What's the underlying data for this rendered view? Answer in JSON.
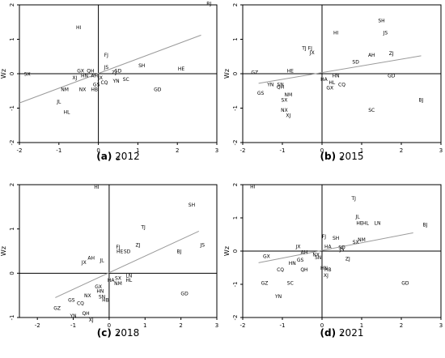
{
  "chart_data": [
    {
      "type": "scatter",
      "caption_label": "(a)",
      "caption_year": "2012",
      "xlabel": "z",
      "ylabel": "Wz",
      "xlim": [
        -2,
        3
      ],
      "ylim": [
        -2,
        2
      ],
      "xticks": [
        "-2",
        "-1",
        "0",
        "1",
        "2",
        "3"
      ],
      "yticks": [
        "-2",
        "-1",
        "0",
        "1",
        "2"
      ],
      "trend": {
        "x1": -2.0,
        "y1": -0.85,
        "x2": 2.6,
        "y2": 1.12
      },
      "points": [
        {
          "label": "TJ",
          "x": 2.3,
          "y": 2.35
        },
        {
          "label": "BJ",
          "x": 2.8,
          "y": 2.05
        },
        {
          "label": "HI",
          "x": -0.5,
          "y": 1.35
        },
        {
          "label": "FJ",
          "x": 0.2,
          "y": 0.55
        },
        {
          "label": "JS",
          "x": 0.2,
          "y": 0.2
        },
        {
          "label": "SD",
          "x": 0.5,
          "y": 0.1
        },
        {
          "label": "SH",
          "x": 1.1,
          "y": 0.25
        },
        {
          "label": "HE",
          "x": 2.1,
          "y": 0.15
        },
        {
          "label": "SX",
          "x": -1.8,
          "y": 0.0
        },
        {
          "label": "GX",
          "x": -0.45,
          "y": 0.1
        },
        {
          "label": "QH",
          "x": -0.2,
          "y": 0.1
        },
        {
          "label": "ZJ",
          "x": 0.4,
          "y": 0.05
        },
        {
          "label": "HN",
          "x": -0.35,
          "y": -0.05
        },
        {
          "label": "AH",
          "x": -0.1,
          "y": -0.05
        },
        {
          "label": "XJ",
          "x": -0.6,
          "y": -0.1
        },
        {
          "label": "JX",
          "x": 0.05,
          "y": -0.1
        },
        {
          "label": "SC",
          "x": 0.7,
          "y": -0.15
        },
        {
          "label": "YN",
          "x": 0.45,
          "y": -0.2
        },
        {
          "label": "CQ",
          "x": 0.15,
          "y": -0.25
        },
        {
          "label": "GS",
          "x": -0.05,
          "y": -0.3
        },
        {
          "label": "NM",
          "x": -0.85,
          "y": -0.45
        },
        {
          "label": "NX",
          "x": -0.4,
          "y": -0.45
        },
        {
          "label": "HB",
          "x": -0.1,
          "y": -0.45
        },
        {
          "label": "GD",
          "x": 1.5,
          "y": -0.45
        },
        {
          "label": "JL",
          "x": -1.0,
          "y": -0.8
        },
        {
          "label": "HL",
          "x": -0.8,
          "y": -1.1
        }
      ]
    },
    {
      "type": "scatter",
      "caption_label": "(b)",
      "caption_year": "2015",
      "xlabel": "z",
      "ylabel": "Wz",
      "xlim": [
        -2,
        3
      ],
      "ylim": [
        -2,
        2
      ],
      "xticks": [
        "-2",
        "-1",
        "0",
        "1",
        "2",
        "3"
      ],
      "yticks": [
        "-2",
        "-1",
        "0",
        "1",
        "2"
      ],
      "trend": {
        "x1": -1.6,
        "y1": -0.28,
        "x2": 2.5,
        "y2": 0.52
      },
      "points": [
        {
          "label": "SH",
          "x": 1.5,
          "y": 1.55
        },
        {
          "label": "JS",
          "x": 1.6,
          "y": 1.2
        },
        {
          "label": "HI",
          "x": 0.35,
          "y": 1.2
        },
        {
          "label": "TJ",
          "x": -0.45,
          "y": 0.75
        },
        {
          "label": "FJ",
          "x": -0.3,
          "y": 0.75
        },
        {
          "label": "JX",
          "x": -0.25,
          "y": 0.62
        },
        {
          "label": "AH",
          "x": 1.25,
          "y": 0.55
        },
        {
          "label": "ZJ",
          "x": 1.75,
          "y": 0.6
        },
        {
          "label": "SD",
          "x": 0.85,
          "y": 0.35
        },
        {
          "label": "GZ",
          "x": -1.7,
          "y": 0.05
        },
        {
          "label": "HE",
          "x": -0.8,
          "y": 0.1
        },
        {
          "label": "HN",
          "x": 0.35,
          "y": -0.05
        },
        {
          "label": "GD",
          "x": 1.75,
          "y": -0.05
        },
        {
          "label": "HA",
          "x": 0.05,
          "y": -0.15
        },
        {
          "label": "HL",
          "x": 0.25,
          "y": -0.25
        },
        {
          "label": "CQ",
          "x": 0.5,
          "y": -0.3
        },
        {
          "label": "YN",
          "x": -1.3,
          "y": -0.3
        },
        {
          "label": "SN",
          "x": -1.05,
          "y": -0.3
        },
        {
          "label": "QH",
          "x": -1.05,
          "y": -0.38
        },
        {
          "label": "GX",
          "x": 0.2,
          "y": -0.4
        },
        {
          "label": "GS",
          "x": -1.55,
          "y": -0.55
        },
        {
          "label": "NM",
          "x": -0.85,
          "y": -0.6
        },
        {
          "label": "SX",
          "x": -0.95,
          "y": -0.75
        },
        {
          "label": "BJ",
          "x": 2.5,
          "y": -0.75
        },
        {
          "label": "NX",
          "x": -0.95,
          "y": -1.05
        },
        {
          "label": "SC",
          "x": 1.25,
          "y": -1.05
        },
        {
          "label": "XJ",
          "x": -0.85,
          "y": -1.2
        }
      ]
    },
    {
      "type": "scatter",
      "caption_label": "(c)",
      "caption_year": "2018",
      "xlabel": "z",
      "ylabel": "Wz",
      "xlim": [
        -2.5,
        3
      ],
      "ylim": [
        -1,
        2
      ],
      "xticks": [
        "-2",
        "-1",
        "0",
        "1",
        "2",
        "3"
      ],
      "yticks": [
        "-1",
        "0",
        "1",
        "2"
      ],
      "trend": {
        "x1": -1.5,
        "y1": -0.55,
        "x2": 2.5,
        "y2": 0.95
      },
      "points": [
        {
          "label": "HI",
          "x": -0.35,
          "y": 1.95
        },
        {
          "label": "SH",
          "x": 2.3,
          "y": 1.55
        },
        {
          "label": "TJ",
          "x": 0.95,
          "y": 1.05
        },
        {
          "label": "ZJ",
          "x": 0.8,
          "y": 0.65
        },
        {
          "label": "JS",
          "x": 2.6,
          "y": 0.65
        },
        {
          "label": "FJ",
          "x": 0.25,
          "y": 0.6
        },
        {
          "label": "HE",
          "x": 0.3,
          "y": 0.5
        },
        {
          "label": "SD",
          "x": 0.5,
          "y": 0.5
        },
        {
          "label": "BJ",
          "x": 1.95,
          "y": 0.5
        },
        {
          "label": "AH",
          "x": -0.5,
          "y": 0.35
        },
        {
          "label": "JX",
          "x": -0.7,
          "y": 0.25
        },
        {
          "label": "JL",
          "x": -0.2,
          "y": 0.3
        },
        {
          "label": "LN",
          "x": 0.55,
          "y": -0.05
        },
        {
          "label": "SX",
          "x": 0.25,
          "y": -0.1
        },
        {
          "label": "HA",
          "x": 0.05,
          "y": -0.15
        },
        {
          "label": "HL",
          "x": 0.55,
          "y": -0.15
        },
        {
          "label": "NM",
          "x": 0.25,
          "y": -0.22
        },
        {
          "label": "GX",
          "x": -0.3,
          "y": -0.3
        },
        {
          "label": "HN",
          "x": -0.25,
          "y": -0.4
        },
        {
          "label": "GD",
          "x": 2.1,
          "y": -0.45
        },
        {
          "label": "NX",
          "x": -0.6,
          "y": -0.5
        },
        {
          "label": "SN",
          "x": -0.2,
          "y": -0.52
        },
        {
          "label": "GS",
          "x": -1.05,
          "y": -0.6
        },
        {
          "label": "HB",
          "x": -0.1,
          "y": -0.6
        },
        {
          "label": "CQ",
          "x": -0.8,
          "y": -0.67
        },
        {
          "label": "GZ",
          "x": -1.45,
          "y": -0.78
        },
        {
          "label": "QH",
          "x": -0.65,
          "y": -0.9
        },
        {
          "label": "YN",
          "x": -1.0,
          "y": -0.95
        },
        {
          "label": "XJ",
          "x": -0.5,
          "y": -1.05
        }
      ]
    },
    {
      "type": "scatter",
      "caption_label": "(d)",
      "caption_year": "2021",
      "xlabel": "z",
      "ylabel": "Wz",
      "xlim": [
        -2,
        3
      ],
      "ylim": [
        -2,
        2
      ],
      "xticks": [
        "-2",
        "-1",
        "0",
        "1",
        "2",
        "3"
      ],
      "yticks": [
        "-2",
        "-1",
        "0",
        "1",
        "2"
      ],
      "trend": {
        "x1": -1.6,
        "y1": -0.35,
        "x2": 2.3,
        "y2": 0.55
      },
      "points": [
        {
          "label": "HI",
          "x": -1.75,
          "y": 1.95
        },
        {
          "label": "TJ",
          "x": 0.8,
          "y": 1.6
        },
        {
          "label": "JL",
          "x": 0.9,
          "y": 1.05
        },
        {
          "label": "HE",
          "x": 0.95,
          "y": 0.85
        },
        {
          "label": "HL",
          "x": 1.1,
          "y": 0.85
        },
        {
          "label": "LN",
          "x": 1.4,
          "y": 0.85
        },
        {
          "label": "BJ",
          "x": 2.6,
          "y": 0.8
        },
        {
          "label": "FJ",
          "x": 0.05,
          "y": 0.45
        },
        {
          "label": "SH",
          "x": 0.35,
          "y": 0.4
        },
        {
          "label": "NM",
          "x": 1.0,
          "y": 0.35
        },
        {
          "label": "SX",
          "x": 0.85,
          "y": 0.28
        },
        {
          "label": "JX",
          "x": -0.6,
          "y": 0.15
        },
        {
          "label": "HA",
          "x": 0.15,
          "y": 0.15
        },
        {
          "label": "SD",
          "x": 0.5,
          "y": 0.12
        },
        {
          "label": "JS",
          "x": 0.5,
          "y": 0.06
        },
        {
          "label": "AH",
          "x": -0.45,
          "y": -0.02
        },
        {
          "label": "NX",
          "x": -0.15,
          "y": -0.1
        },
        {
          "label": "SN",
          "x": -0.1,
          "y": -0.18
        },
        {
          "label": "GX",
          "x": -1.4,
          "y": -0.15
        },
        {
          "label": "GS",
          "x": -0.55,
          "y": -0.25
        },
        {
          "label": "ZJ",
          "x": 0.65,
          "y": -0.22
        },
        {
          "label": "HN",
          "x": -0.75,
          "y": -0.35
        },
        {
          "label": "CQ",
          "x": -1.05,
          "y": -0.55
        },
        {
          "label": "QH",
          "x": -0.45,
          "y": -0.55
        },
        {
          "label": "HN",
          "x": 0.05,
          "y": -0.5
        },
        {
          "label": "HB",
          "x": 0.15,
          "y": -0.55
        },
        {
          "label": "XJ",
          "x": 0.1,
          "y": -0.72
        },
        {
          "label": "GZ",
          "x": -1.45,
          "y": -0.95
        },
        {
          "label": "SC",
          "x": -0.8,
          "y": -0.95
        },
        {
          "label": "GD",
          "x": 2.1,
          "y": -0.95
        },
        {
          "label": "YN",
          "x": -1.1,
          "y": -1.35
        }
      ]
    }
  ]
}
